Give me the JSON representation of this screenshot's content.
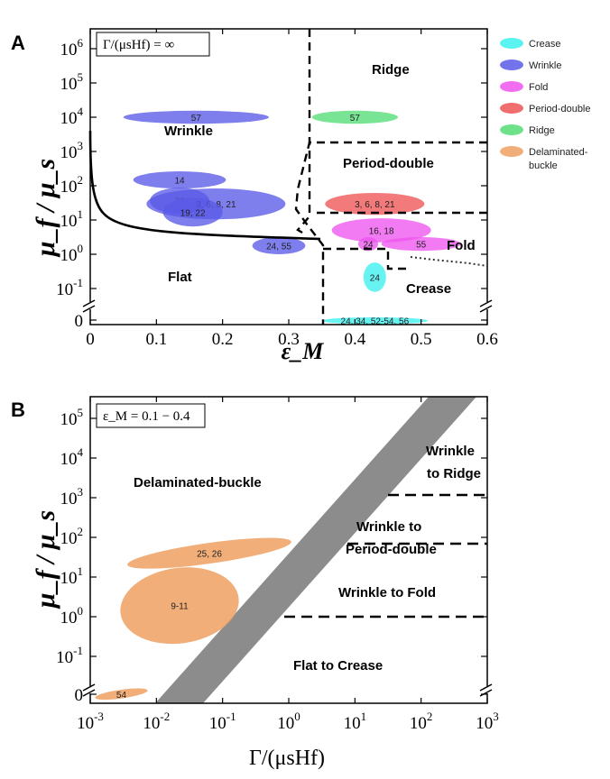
{
  "chart_data": [
    {
      "type": "scatter",
      "panel": "A",
      "xlabel": "ε_M",
      "ylabel": "μ_f / μ_s",
      "xlim": [
        0,
        0.6
      ],
      "x_ticks": [
        "0",
        "0.1",
        "0.2",
        "0.3",
        "0.4",
        "0.5",
        "0.6"
      ],
      "y_ticks": [
        "0",
        "10-1",
        "100",
        "101",
        "102",
        "103",
        "104",
        "105",
        "106"
      ],
      "y_scale": "log",
      "annotation": "Γ/(μsHf) = ∞",
      "legend_position": "right",
      "legend": [
        {
          "name": "Crease",
          "color": "#3ef0f0"
        },
        {
          "name": "Wrinkle",
          "color": "#5a5ae8"
        },
        {
          "name": "Fold",
          "color": "#ee55ee"
        },
        {
          "name": "Period-double",
          "color": "#ee5555"
        },
        {
          "name": "Ridge",
          "color": "#55dd77"
        },
        {
          "name": "Delaminated-buckle",
          "color": "#eea060"
        }
      ],
      "regions": [
        "Ridge",
        "Wrinkle",
        "Period-double",
        "Flat",
        "Fold",
        "Crease"
      ],
      "studies": [
        {
          "series": "Wrinkle",
          "label": "57",
          "x": 0.16,
          "y": 4.0,
          "rx": 0.11,
          "ry": 0.19
        },
        {
          "series": "Ridge",
          "label": "57",
          "x": 0.4,
          "y": 4.0,
          "rx": 0.065,
          "ry": 0.19
        },
        {
          "series": "Wrinkle",
          "label": "14",
          "x": 0.135,
          "y": 2.17,
          "rx": 0.07,
          "ry": 0.25
        },
        {
          "series": "Wrinkle",
          "label": "27",
          "x": 0.135,
          "y": 1.56,
          "rx": 0.045,
          "ry": 0.38
        },
        {
          "series": "Wrinkle",
          "label": "3, 6, 8, 21",
          "x": 0.19,
          "y": 1.47,
          "rx": 0.105,
          "ry": 0.45
        },
        {
          "series": "Wrinkle",
          "label": "19, 22",
          "x": 0.155,
          "y": 1.23,
          "rx": 0.045,
          "ry": 0.42
        },
        {
          "series": "Wrinkle",
          "label": "24, 55",
          "x": 0.285,
          "y": 0.25,
          "rx": 0.04,
          "ry": 0.25
        },
        {
          "series": "Period-double",
          "label": "3, 6, 8, 21",
          "x": 0.43,
          "y": 1.47,
          "rx": 0.075,
          "ry": 0.32
        },
        {
          "series": "Fold",
          "label": "16, 18",
          "x": 0.44,
          "y": 0.7,
          "rx": 0.075,
          "ry": 0.35
        },
        {
          "series": "Fold",
          "label": "24",
          "x": 0.42,
          "y": 0.3,
          "rx": 0.015,
          "ry": 0.2
        },
        {
          "series": "Fold",
          "label": "55",
          "x": 0.5,
          "y": 0.3,
          "rx": 0.06,
          "ry": 0.2
        },
        {
          "series": "Crease",
          "label": "24",
          "x": 0.43,
          "y": -0.67,
          "rx": 0.017,
          "ry": 0.43
        },
        {
          "series": "Crease",
          "label": "24, 34, 52-54, 56",
          "x": 0.43,
          "y": -1.94,
          "rx": 0.08,
          "ry": 0.1
        }
      ]
    },
    {
      "type": "scatter",
      "panel": "B",
      "xlabel": "Γ/(μsHf)",
      "ylabel": "μ_f / μ_s",
      "x_scale": "log",
      "y_scale": "log",
      "x_ticks": [
        "10-3",
        "10-2",
        "10-1",
        "100",
        "101",
        "102",
        "103"
      ],
      "y_ticks": [
        "0",
        "10-1",
        "100",
        "101",
        "102",
        "103",
        "104",
        "105"
      ],
      "annotation": "ε_M = 0.1 − 0.4",
      "regions": [
        "Wrinkle to Ridge",
        "Delaminated-buckle",
        "Wrinkle to Period-double",
        "Wrinkle to Fold",
        "Flat to Crease"
      ],
      "studies": [
        {
          "series": "Delaminated-buckle",
          "label": "25, 26",
          "x": -1.2,
          "y": 1.6,
          "rx": 1.25,
          "ry": 0.26
        },
        {
          "series": "Delaminated-buckle",
          "label": "9-11",
          "x": -1.65,
          "y": 0.28,
          "rx": 0.9,
          "ry": 0.95
        },
        {
          "series": "Delaminated-buckle",
          "label": "54",
          "x": -2.53,
          "y": -1.95,
          "rx": 0.4,
          "ry": 0.11
        }
      ]
    }
  ]
}
